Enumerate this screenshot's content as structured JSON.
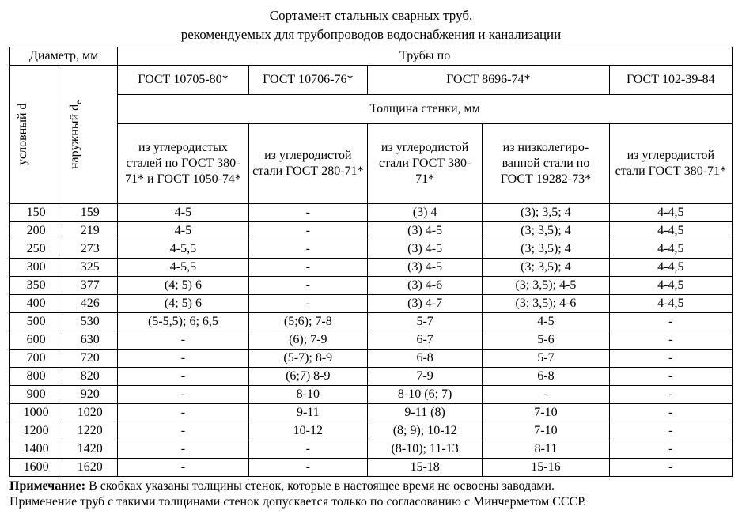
{
  "title_line1": "Сортамент стальных сварных труб,",
  "title_line2": "рекомендуемых для трубопроводов водоснабжения и канализации",
  "headers": {
    "diameter": "Диаметр, мм",
    "pipes_by": "Трубы по",
    "nominal_d": "условный d",
    "outer_de_prefix": "наружный d",
    "outer_de_sub": "е",
    "gost1": "ГОСТ 10705-80*",
    "gost2": "ГОСТ 10706-76*",
    "gost3": "ГОСТ 8696-74*",
    "gost4": "ГОСТ 102-39-84",
    "wall_thickness": "Толщина стенки, мм",
    "mat1": "из углеродистых сталей по ГОСТ 380-71* и ГОСТ 1050-74*",
    "mat2": "из углеродистой стали ГОСТ 280-71*",
    "mat3": "из углеродистой стали ГОСТ 380-71*",
    "mat4": "из низколегиро-ванной стали по ГОСТ 19282-73*",
    "mat5": "из углеродистой стали ГОСТ 380-71*"
  },
  "rows": [
    {
      "d": "150",
      "de": "159",
      "c": [
        "4-5",
        "-",
        "(3) 4",
        "(3); 3,5; 4",
        "4-4,5"
      ]
    },
    {
      "d": "200",
      "de": "219",
      "c": [
        "4-5",
        "-",
        "(3) 4-5",
        "(3; 3,5); 4",
        "4-4,5"
      ]
    },
    {
      "d": "250",
      "de": "273",
      "c": [
        "4-5,5",
        "-",
        "(3) 4-5",
        "(3; 3,5); 4",
        "4-4,5"
      ]
    },
    {
      "d": "300",
      "de": "325",
      "c": [
        "4-5,5",
        "-",
        "(3) 4-5",
        "(3; 3,5); 4",
        "4-4,5"
      ]
    },
    {
      "d": "350",
      "de": "377",
      "c": [
        "(4; 5) 6",
        "-",
        "(3) 4-6",
        "(3; 3,5); 4-5",
        "4-4,5"
      ]
    },
    {
      "d": "400",
      "de": "426",
      "c": [
        "(4; 5) 6",
        "-",
        "(3) 4-7",
        "(3; 3,5); 4-6",
        "4-4,5"
      ]
    },
    {
      "d": "500",
      "de": "530",
      "c": [
        "(5-5,5); 6; 6,5",
        "(5;6); 7-8",
        "5-7",
        "4-5",
        "-"
      ]
    },
    {
      "d": "600",
      "de": "630",
      "c": [
        "-",
        "(6); 7-9",
        "6-7",
        "5-6",
        "-"
      ]
    },
    {
      "d": "700",
      "de": "720",
      "c": [
        "-",
        "(5-7); 8-9",
        "6-8",
        "5-7",
        "-"
      ]
    },
    {
      "d": "800",
      "de": "820",
      "c": [
        "-",
        "(6;7) 8-9",
        "7-9",
        "6-8",
        "-"
      ]
    },
    {
      "d": "900",
      "de": "920",
      "c": [
        "-",
        "8-10",
        "8-10 (6; 7)",
        "-",
        "-"
      ]
    },
    {
      "d": "1000",
      "de": "1020",
      "c": [
        "-",
        "9-11",
        "9-11 (8)",
        "7-10",
        "-"
      ]
    },
    {
      "d": "1200",
      "de": "1220",
      "c": [
        "-",
        "10-12",
        "(8; 9); 10-12",
        "7-10",
        "-"
      ]
    },
    {
      "d": "1400",
      "de": "1420",
      "c": [
        "-",
        "-",
        "(8-10); 11-13",
        "8-11",
        "-"
      ]
    },
    {
      "d": "1600",
      "de": "1620",
      "c": [
        "-",
        "-",
        "15-18",
        "15-16",
        "-"
      ]
    }
  ],
  "note_label": "Примечание:",
  "note_text1": " В скобках указаны толщины стенок, которые в настоящее время не освоены заводами.",
  "note_text2": "Применение труб с такими толщинами стенок допускается только по согласованию с Минчерметом СССР."
}
